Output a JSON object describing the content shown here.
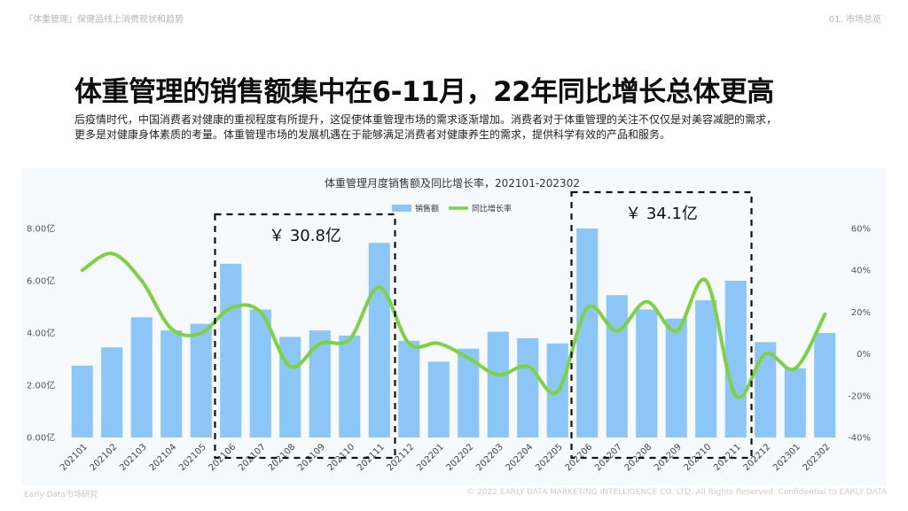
{
  "header": {
    "report_title": "『体重管理』保健品线上消费现状和趋势",
    "section": "01. 市场总览"
  },
  "headline": "体重管理的销售额集中在6-11月，22年同比增长总体更高",
  "description": [
    "后疫情时代，中国消费者对健康的重视程度有所提升，这促使体重管理市场的需求逐渐增加。消费者对于体重管理的关注不仅仅是对美容减肥的需求，",
    "更多是对健康身体素质的考量。体重管理市场的发展机遇在于能够满足消费者对健康养生的需求，提供科学有效的产品和服务。"
  ],
  "footer": {
    "left": "Early Data市场研究",
    "right": "© 2022 EARLY DATA MARKETING INTELLIGENCE CO. LTD. All Rights Reserved. Confidential to EARLY DATA"
  },
  "colors": {
    "bar": "#8cc6f7",
    "line": "#7ed23f",
    "box": "#111111"
  },
  "chart_data": {
    "type": "bar",
    "title": "体重管理月度销售额及同比增长率，202101-202302",
    "legend": {
      "position": "top",
      "entries": [
        "销售额",
        "同比增长率"
      ]
    },
    "categories": [
      "202101",
      "202102",
      "202103",
      "202104",
      "202105",
      "202106",
      "202107",
      "202108",
      "202109",
      "202110",
      "202111",
      "202112",
      "202201",
      "202202",
      "202203",
      "202204",
      "202205",
      "202206",
      "202207",
      "202208",
      "202209",
      "202210",
      "202211",
      "202212",
      "202301",
      "202302"
    ],
    "series": [
      {
        "name": "销售额",
        "type": "bar",
        "axis": "left",
        "values": [
          2.75,
          3.45,
          4.6,
          4.1,
          4.35,
          6.65,
          4.9,
          3.85,
          4.1,
          3.9,
          7.45,
          3.7,
          2.9,
          3.4,
          4.05,
          3.8,
          3.6,
          8.0,
          5.45,
          4.9,
          4.55,
          5.25,
          6.0,
          3.65,
          2.65,
          4.0
        ]
      },
      {
        "name": "同比增长率",
        "type": "line",
        "axis": "right",
        "values": [
          40,
          48,
          35,
          12,
          10,
          22,
          20,
          -6,
          5,
          7,
          32,
          5,
          5,
          -2,
          -10,
          -6,
          -18,
          22,
          11,
          25,
          11,
          35,
          -20,
          0,
          -7,
          19
        ]
      }
    ],
    "y_left": {
      "ticks": [
        "0.00亿",
        "2.00亿",
        "4.00亿",
        "6.00亿",
        "8.00亿"
      ],
      "min": 0,
      "max": 8
    },
    "y_right": {
      "ticks": [
        "-40%",
        "-20%",
        "0%",
        "20%",
        "40%",
        "60%"
      ],
      "min": -40,
      "max": 60
    },
    "grid": false,
    "annotations": [
      {
        "label": "￥ 30.8亿",
        "from": "202106",
        "to": "202111"
      },
      {
        "label": "￥ 34.1亿",
        "from": "202206",
        "to": "202211"
      }
    ]
  }
}
